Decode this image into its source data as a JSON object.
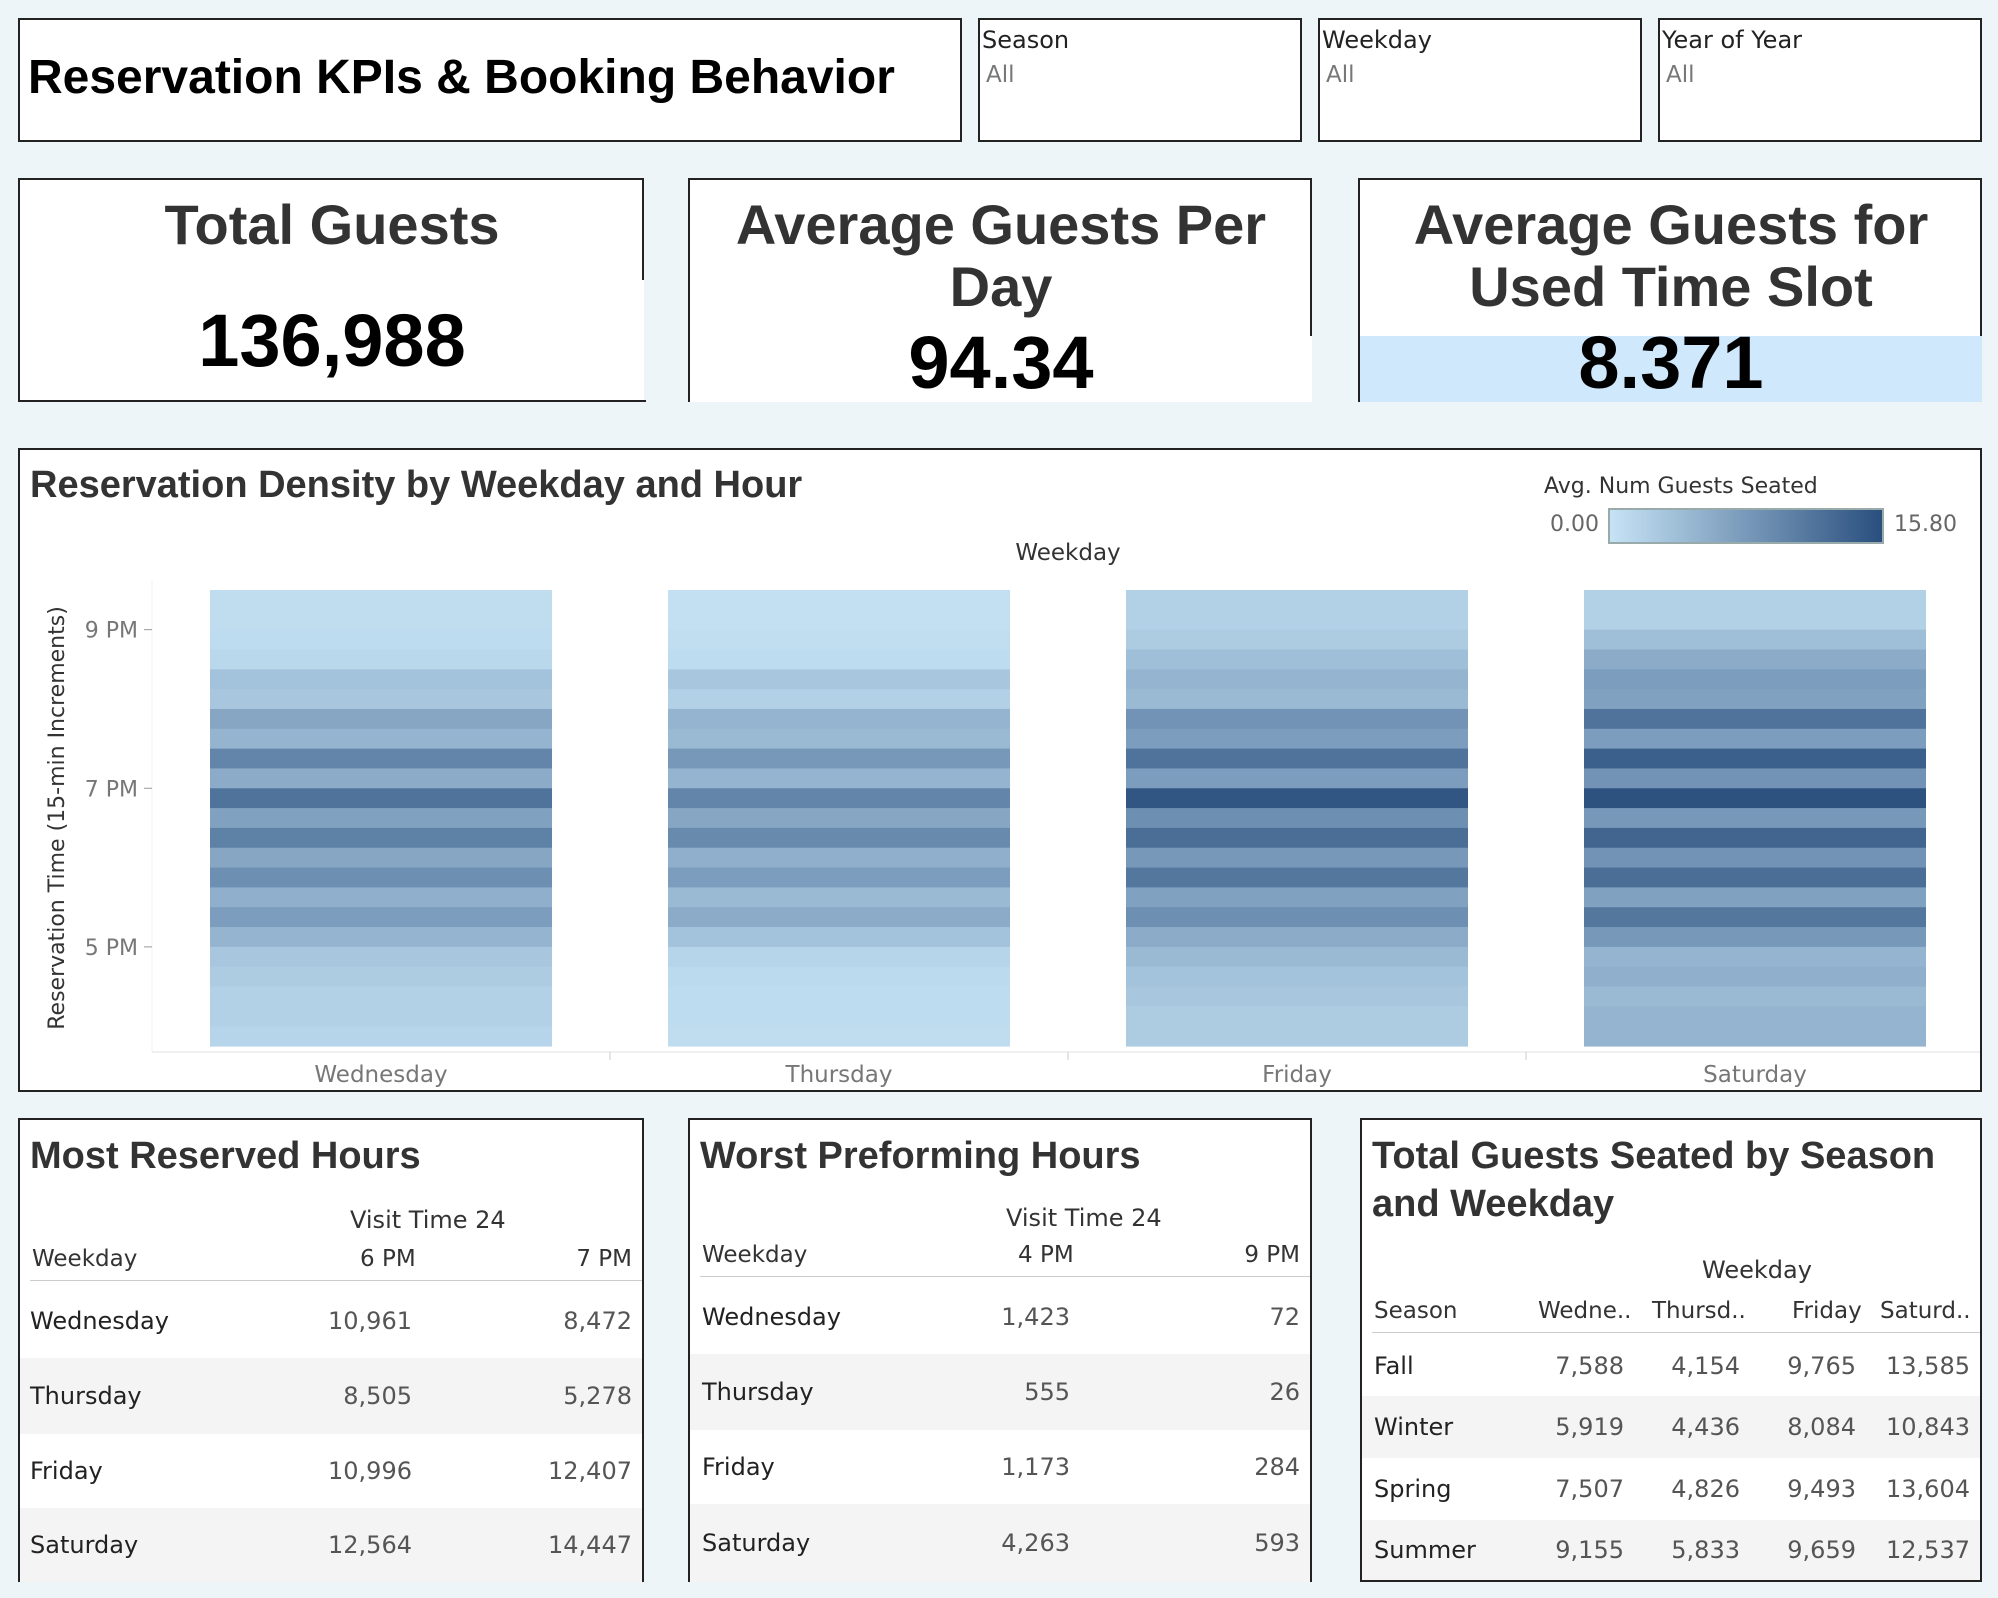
{
  "header": {
    "title": "Reservation KPIs & Booking Behavior"
  },
  "filters": [
    {
      "label": "Season",
      "value": "All"
    },
    {
      "label": "Weekday",
      "value": "All"
    },
    {
      "label": "Year of Year",
      "value": "All"
    }
  ],
  "kpis": [
    {
      "title_lines": [
        "Total Guests"
      ],
      "value": "136,988"
    },
    {
      "title_lines": [
        "Average Guests Per",
        "Day"
      ],
      "value": "94.34"
    },
    {
      "title_lines": [
        "Average Guests for",
        "Used Time Slot"
      ],
      "value": "8.371"
    }
  ],
  "heatmap": {
    "title": "Reservation Density by Weekday and Hour",
    "legend_title": "Avg. Num Guests Seated",
    "legend_min": "0.00",
    "legend_max": "15.80",
    "legend_colors": [
      "#c6e3f5",
      "#2a4f7e"
    ],
    "x_group_label": "Weekday",
    "y_label": "Reservation Time (15-min Increments)",
    "y_ticks": [
      "9 PM",
      "7 PM",
      "5 PM"
    ]
  },
  "chart_data": {
    "type": "heatmap",
    "title": "Reservation Density by Weekday and Hour",
    "xlabel": "Weekday",
    "ylabel": "Reservation Time (15-min Increments)",
    "categories": [
      "Wednesday",
      "Thursday",
      "Friday",
      "Saturday"
    ],
    "y_ticks": [
      "9 PM",
      "7 PM",
      "5 PM"
    ],
    "color_range": [
      0.0,
      15.8
    ],
    "note_rows_top_to_bottom": "23 slots",
    "values": [
      [
        0.6,
        0.6,
        0.8,
        1.2,
        3.5,
        3.0,
        6.5,
        5.0,
        10.0,
        6.0,
        12.0,
        7.0,
        10.5,
        6.5,
        9.0,
        5.5,
        7.5,
        5.0,
        3.0,
        2.5,
        2.0,
        2.0,
        1.5
      ],
      [
        0.3,
        0.3,
        0.5,
        0.8,
        3.0,
        2.0,
        5.0,
        4.5,
        8.0,
        5.0,
        10.0,
        6.5,
        9.5,
        5.5,
        7.5,
        4.5,
        6.0,
        3.5,
        1.5,
        1.0,
        0.8,
        0.8,
        0.6
      ],
      [
        2.0,
        2.0,
        2.5,
        4.0,
        5.0,
        4.5,
        8.5,
        7.5,
        12.0,
        7.5,
        15.0,
        9.0,
        12.5,
        8.0,
        11.5,
        7.0,
        9.0,
        6.0,
        4.5,
        3.5,
        3.0,
        2.5,
        2.5
      ],
      [
        2.0,
        2.0,
        4.0,
        6.0,
        7.5,
        7.0,
        12.0,
        7.5,
        14.0,
        8.5,
        15.5,
        8.0,
        13.5,
        8.5,
        12.5,
        7.0,
        11.5,
        8.0,
        5.0,
        5.5,
        4.5,
        5.0,
        5.0
      ]
    ]
  },
  "tables": {
    "most": {
      "title": "Most Reserved Hours",
      "group_label": "Visit Time 24",
      "row_header": "Weekday",
      "columns": [
        "6 PM",
        "7 PM"
      ],
      "rows": [
        {
          "name": "Wednesday",
          "values": [
            "10,961",
            "8,472"
          ]
        },
        {
          "name": "Thursday",
          "values": [
            "8,505",
            "5,278"
          ]
        },
        {
          "name": "Friday",
          "values": [
            "10,996",
            "12,407"
          ]
        },
        {
          "name": "Saturday",
          "values": [
            "12,564",
            "14,447"
          ]
        }
      ]
    },
    "worst": {
      "title": "Worst Preforming Hours",
      "group_label": "Visit Time 24",
      "row_header": "Weekday",
      "columns": [
        "4 PM",
        "9 PM"
      ],
      "rows": [
        {
          "name": "Wednesday",
          "values": [
            "1,423",
            "72"
          ]
        },
        {
          "name": "Thursday",
          "values": [
            "555",
            "26"
          ]
        },
        {
          "name": "Friday",
          "values": [
            "1,173",
            "284"
          ]
        },
        {
          "name": "Saturday",
          "values": [
            "4,263",
            "593"
          ]
        }
      ]
    },
    "season": {
      "title_lines": [
        "Total Guests Seated by Season",
        "and Weekday"
      ],
      "group_label": "Weekday",
      "row_header": "Season",
      "columns": [
        "Wedne..",
        "Thursd..",
        "Friday",
        "Saturd.."
      ],
      "rows": [
        {
          "name": "Fall",
          "values": [
            "7,588",
            "4,154",
            "9,765",
            "13,585"
          ]
        },
        {
          "name": "Winter",
          "values": [
            "5,919",
            "4,436",
            "8,084",
            "10,843"
          ]
        },
        {
          "name": "Spring",
          "values": [
            "7,507",
            "4,826",
            "9,493",
            "13,604"
          ]
        },
        {
          "name": "Summer",
          "values": [
            "9,155",
            "5,833",
            "9,659",
            "12,537"
          ]
        }
      ]
    }
  }
}
